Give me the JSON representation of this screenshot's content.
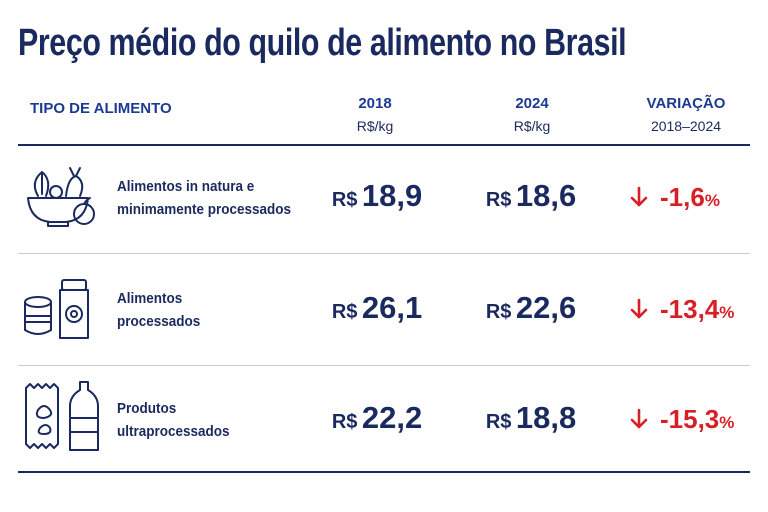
{
  "title": "Preço médio do quilo de alimento no Brasil",
  "table": {
    "columns": [
      {
        "label": "TIPO DE ALIMENTO"
      },
      {
        "label": "2018",
        "unit": "R$/kg"
      },
      {
        "label": "2024",
        "unit": "R$/kg"
      },
      {
        "label": "VARIAÇÃO",
        "unit": "2018–2024"
      }
    ],
    "rows": [
      {
        "name": [
          "Alimentos in natura e",
          "minimamente processados"
        ],
        "price_2018": {
          "prefix": "R$",
          "value": "18,9"
        },
        "price_2024": {
          "prefix": "R$",
          "value": "18,6"
        },
        "change": {
          "value": "-1,6",
          "suffix": "%"
        }
      },
      {
        "name": [
          "Alimentos",
          "processados"
        ],
        "price_2018": {
          "prefix": "R$",
          "value": "26,1"
        },
        "price_2024": {
          "prefix": "R$",
          "value": "22,6"
        },
        "change": {
          "value": "-13,4",
          "suffix": "%"
        }
      },
      {
        "name": [
          "Produtos",
          "ultraprocessados"
        ],
        "price_2018": {
          "prefix": "R$",
          "value": "22,2"
        },
        "price_2024": {
          "prefix": "R$",
          "value": "18,8"
        },
        "change": {
          "value": "-15,3",
          "suffix": "%"
        }
      }
    ]
  }
}
